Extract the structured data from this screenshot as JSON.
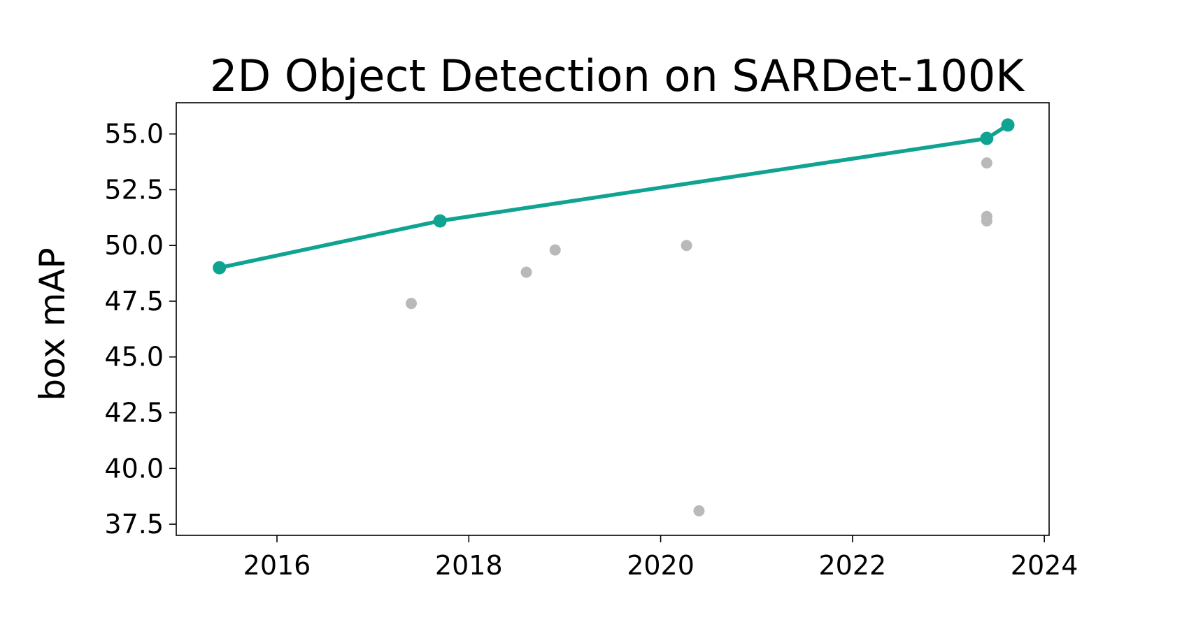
{
  "chart_data": {
    "type": "scatter",
    "title": "2D Object Detection on SARDet-100K",
    "xlabel": "",
    "ylabel": "box mAP",
    "xlim": [
      2014.95,
      2024.05
    ],
    "ylim": [
      37.0,
      56.4
    ],
    "xticks": [
      2016,
      2018,
      2020,
      2022,
      2024
    ],
    "xtick_labels": [
      "2016",
      "2018",
      "2020",
      "2022",
      "2024"
    ],
    "yticks": [
      37.5,
      40.0,
      42.5,
      45.0,
      47.5,
      50.0,
      52.5,
      55.0
    ],
    "ytick_labels": [
      "37.5",
      "40.0",
      "42.5",
      "45.0",
      "47.5",
      "50.0",
      "52.5",
      "55.0"
    ],
    "grid": false,
    "series": [
      {
        "role": "state-of-the-art frontier",
        "color": "#10a392",
        "points": [
          {
            "x": 2015.4,
            "y": 49.0
          },
          {
            "x": 2017.7,
            "y": 51.1
          },
          {
            "x": 2023.4,
            "y": 54.8
          },
          {
            "x": 2023.62,
            "y": 55.4
          }
        ]
      },
      {
        "role": "other methods",
        "color": "#b9b9b9",
        "points": [
          {
            "x": 2017.4,
            "y": 47.4
          },
          {
            "x": 2018.6,
            "y": 48.8
          },
          {
            "x": 2018.9,
            "y": 49.8
          },
          {
            "x": 2020.27,
            "y": 50.0
          },
          {
            "x": 2020.4,
            "y": 38.1
          },
          {
            "x": 2023.4,
            "y": 53.7
          },
          {
            "x": 2023.4,
            "y": 51.3
          },
          {
            "x": 2023.4,
            "y": 51.1
          }
        ]
      }
    ]
  }
}
